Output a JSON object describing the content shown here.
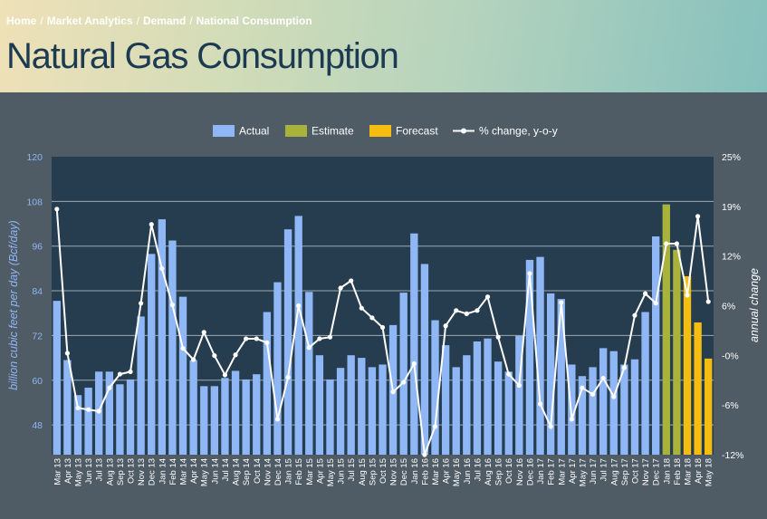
{
  "breadcrumb": [
    "Home",
    "Market Analytics",
    "Demand",
    "National Consumption"
  ],
  "page_title": "Natural Gas Consumption",
  "colors": {
    "actual": "#8fb6f5",
    "estimate": "#a9b23a",
    "forecast": "#f5bd0f",
    "pct_line": "#ffffff",
    "plot_bg": "#263d50",
    "gridline": "#c7cdd2",
    "left_axis_text": "#8fb6f5",
    "right_axis_text": "#ffffff"
  },
  "chart_data": {
    "type": "bar",
    "title": "",
    "ylabel": "billion cubic feet per day (Bcf/day)",
    "y2label": "annual change",
    "ylim": [
      40,
      120
    ],
    "y2lim": [
      -12,
      25
    ],
    "yticks": [
      48,
      60,
      72,
      84,
      96,
      108,
      120
    ],
    "y2ticks": [
      "25%",
      "19%",
      "12%",
      "6%",
      "-0%",
      "-6%",
      "-12%"
    ],
    "grid": true,
    "legend_position": "top-center",
    "legend": [
      "Actual",
      "Estimate",
      "Forecast",
      "% change, y-o-y"
    ],
    "categories": [
      "Mar 13",
      "Apr 13",
      "May 13",
      "Jun 13",
      "Jul 13",
      "Aug 13",
      "Sep 13",
      "Oct 13",
      "Nov 13",
      "Dec 13",
      "Jan 14",
      "Feb 14",
      "Mar 14",
      "Apr 14",
      "May 14",
      "Jun 14",
      "Jul 14",
      "Aug 14",
      "Sep 14",
      "Oct 14",
      "Nov 14",
      "Dec 14",
      "Jan 15",
      "Feb 15",
      "Mar 15",
      "Apr 15",
      "May 15",
      "Jun 15",
      "Jul 15",
      "Aug 15",
      "Sep 15",
      "Oct 15",
      "Nov 15",
      "Dec 15",
      "Jan 16",
      "Feb 16",
      "Mar 16",
      "Apr 16",
      "May 16",
      "Jun 16",
      "Jul 16",
      "Aug 16",
      "Sep 16",
      "Oct 16",
      "Nov 16",
      "Dec 16",
      "Jan 17",
      "Feb 17",
      "Mar 17",
      "Apr 17",
      "May 17",
      "Jun 17",
      "Jul 17",
      "Aug 17",
      "Sep 17",
      "Oct 17",
      "Nov 17",
      "Dec 17",
      "Jan 18",
      "Feb 18",
      "Mar 18",
      "Apr 18",
      "May 18"
    ],
    "series": [
      {
        "name": "Actual",
        "values": [
          81.3,
          65.4,
          56,
          58,
          62.3,
          62.3,
          58.9,
          60.2,
          77.1,
          93.9,
          103.2,
          97.5,
          82.4,
          65.4,
          58.4,
          58.4,
          60.6,
          62.5,
          60.2,
          61.6,
          78.3,
          86.3,
          100.5,
          104.1,
          83.7,
          66.7,
          60.2,
          63.3,
          66.7,
          66,
          63.5,
          64.2,
          74.8,
          83.5,
          99.4,
          91.2,
          76.1,
          69.4,
          63.5,
          66.7,
          70.4,
          71.2,
          65,
          62.3,
          71.9,
          92.3,
          93.1,
          83.3,
          81.8,
          64.2,
          61.1,
          63.5,
          68.6,
          67.8,
          64.2,
          65.6,
          78.3,
          98.6,
          null,
          null,
          null,
          null,
          null
        ]
      },
      {
        "name": "Estimate",
        "values": [
          null,
          null,
          null,
          null,
          null,
          null,
          null,
          null,
          null,
          null,
          null,
          null,
          null,
          null,
          null,
          null,
          null,
          null,
          null,
          null,
          null,
          null,
          null,
          null,
          null,
          null,
          null,
          null,
          null,
          null,
          null,
          null,
          null,
          null,
          null,
          null,
          null,
          null,
          null,
          null,
          null,
          null,
          null,
          null,
          null,
          null,
          null,
          null,
          null,
          null,
          null,
          null,
          null,
          null,
          null,
          null,
          null,
          null,
          107.2,
          95,
          null,
          null,
          null
        ]
      },
      {
        "name": "Forecast",
        "values": [
          null,
          null,
          null,
          null,
          null,
          null,
          null,
          null,
          null,
          null,
          null,
          null,
          null,
          null,
          null,
          null,
          null,
          null,
          null,
          null,
          null,
          null,
          null,
          null,
          null,
          null,
          null,
          null,
          null,
          null,
          null,
          null,
          null,
          null,
          null,
          null,
          null,
          null,
          null,
          null,
          null,
          null,
          null,
          null,
          null,
          null,
          null,
          null,
          null,
          null,
          null,
          null,
          null,
          null,
          null,
          null,
          null,
          null,
          null,
          null,
          87.9,
          75.5,
          65.8
        ]
      },
      {
        "name": "% change, y-o-y",
        "values": [
          18.5,
          0.6,
          -6.2,
          -6.4,
          -6.6,
          -3.7,
          -2.0,
          -1.7,
          6.8,
          16.6,
          11.1,
          6.6,
          1.2,
          -0.2,
          3.2,
          0.3,
          -2.1,
          0.4,
          2.4,
          2.4,
          1.9,
          -7.6,
          -2.4,
          6.5,
          1.3,
          2.4,
          2.6,
          8.7,
          9.6,
          6.2,
          5.0,
          3.8,
          -4.2,
          -3.0,
          -0.7,
          -12.0,
          -8.5,
          4.0,
          5.9,
          5.5,
          5.9,
          7.6,
          2.6,
          -2.0,
          -3.4,
          10.5,
          -5.7,
          -8.5,
          6.9,
          -7.6,
          -3.7,
          -4.5,
          -2.5,
          -4.8,
          -1.2,
          5.3,
          8.0,
          6.8,
          14.2,
          14.2,
          7.8,
          17.6,
          7.0
        ]
      }
    ]
  }
}
